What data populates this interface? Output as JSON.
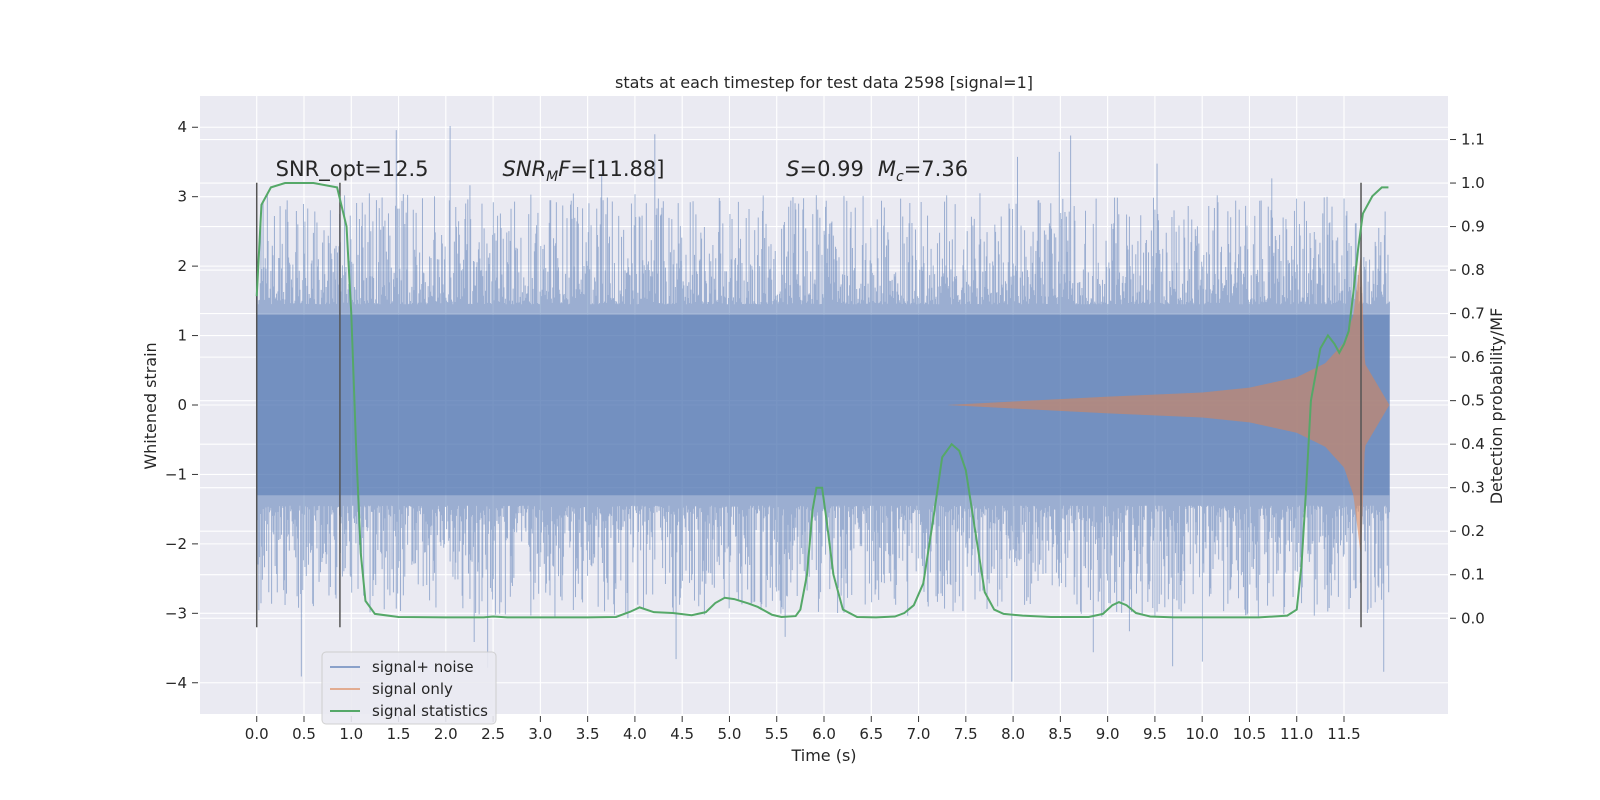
{
  "chart_data": {
    "type": "line",
    "title": "stats at each timestep for test data 2598 [signal=1]",
    "xlabel": "Time (s)",
    "ylabel": "Whitened strain",
    "ylabel_right": "Detection probability/MF",
    "xlim": [
      -0.6,
      12.6
    ],
    "ylim": [
      -4.45,
      4.45
    ],
    "ylim_right": [
      -0.22,
      1.2
    ],
    "x_ticks": [
      "0.0",
      "0.5",
      "1.0",
      "1.5",
      "2.0",
      "2.5",
      "3.0",
      "3.5",
      "4.0",
      "4.5",
      "5.0",
      "5.5",
      "6.0",
      "6.5",
      "7.0",
      "7.5",
      "8.0",
      "8.5",
      "9.0",
      "9.5",
      "10.0",
      "10.5",
      "11.0",
      "11.5"
    ],
    "y_ticks": [
      "4",
      "3",
      "2",
      "1",
      "0",
      "−1",
      "−2",
      "−3",
      "−4"
    ],
    "y_ticks_right": [
      "1.1",
      "1.0",
      "0.9",
      "0.8",
      "0.7",
      "0.6",
      "0.5",
      "0.4",
      "0.3",
      "0.2",
      "0.1",
      "0.0"
    ],
    "grid": true,
    "legend_position": "lower-left",
    "colors": {
      "signal_noise": "#4c72b0",
      "signal_only": "#dd8452",
      "signal_statistics": "#55a868",
      "background": "#eaeaf2",
      "grid": "#ffffff",
      "markers": "#555555"
    },
    "annotations": [
      {
        "text": "SNR_opt=12.5",
        "x": 0.2,
        "y": 3.3
      },
      {
        "text": "SNR_MF=[11.88]",
        "x": 2.6,
        "y": 3.3
      },
      {
        "text": "S=0.99   M_c=7.36",
        "x": 5.6,
        "y": 3.3
      }
    ],
    "vertical_markers": [
      0.0,
      0.88,
      11.68
    ],
    "series": [
      {
        "name": "signal+ noise",
        "kind": "noise-envelope",
        "x_range": [
          0.0,
          11.98
        ],
        "envelope_core": 1.3,
        "typical_max": 2.9,
        "extreme_max": 4.1,
        "extreme_min": -4.0
      },
      {
        "name": "signal only",
        "kind": "chirp-envelope",
        "x_start": 7.3,
        "x_end": 11.98,
        "amplitude_points": [
          [
            7.3,
            0.0
          ],
          [
            8.0,
            0.05
          ],
          [
            9.0,
            0.12
          ],
          [
            10.0,
            0.18
          ],
          [
            10.5,
            0.25
          ],
          [
            11.0,
            0.4
          ],
          [
            11.3,
            0.6
          ],
          [
            11.5,
            0.9
          ],
          [
            11.6,
            1.3
          ],
          [
            11.68,
            2.2
          ],
          [
            11.72,
            0.6
          ],
          [
            11.98,
            0.0
          ]
        ]
      },
      {
        "name": "signal statistics",
        "kind": "line",
        "axis": "right",
        "points": [
          [
            0.0,
            0.74
          ],
          [
            0.05,
            0.95
          ],
          [
            0.15,
            0.99
          ],
          [
            0.3,
            1.0
          ],
          [
            0.6,
            1.0
          ],
          [
            0.85,
            0.99
          ],
          [
            0.95,
            0.9
          ],
          [
            1.0,
            0.7
          ],
          [
            1.05,
            0.4
          ],
          [
            1.1,
            0.15
          ],
          [
            1.15,
            0.04
          ],
          [
            1.25,
            0.01
          ],
          [
            1.5,
            0.003
          ],
          [
            2.0,
            0.002
          ],
          [
            2.4,
            0.002
          ],
          [
            2.5,
            0.004
          ],
          [
            2.65,
            0.002
          ],
          [
            3.0,
            0.002
          ],
          [
            3.5,
            0.002
          ],
          [
            3.8,
            0.003
          ],
          [
            3.95,
            0.015
          ],
          [
            4.05,
            0.025
          ],
          [
            4.2,
            0.014
          ],
          [
            4.4,
            0.012
          ],
          [
            4.6,
            0.007
          ],
          [
            4.75,
            0.014
          ],
          [
            4.85,
            0.035
          ],
          [
            4.95,
            0.047
          ],
          [
            5.05,
            0.044
          ],
          [
            5.2,
            0.034
          ],
          [
            5.3,
            0.026
          ],
          [
            5.45,
            0.008
          ],
          [
            5.55,
            0.003
          ],
          [
            5.7,
            0.005
          ],
          [
            5.75,
            0.02
          ],
          [
            5.82,
            0.1
          ],
          [
            5.88,
            0.25
          ],
          [
            5.92,
            0.3
          ],
          [
            5.98,
            0.3
          ],
          [
            6.03,
            0.22
          ],
          [
            6.1,
            0.1
          ],
          [
            6.2,
            0.02
          ],
          [
            6.35,
            0.003
          ],
          [
            6.55,
            0.002
          ],
          [
            6.75,
            0.004
          ],
          [
            6.85,
            0.012
          ],
          [
            6.95,
            0.03
          ],
          [
            7.05,
            0.08
          ],
          [
            7.15,
            0.22
          ],
          [
            7.25,
            0.37
          ],
          [
            7.35,
            0.4
          ],
          [
            7.43,
            0.385
          ],
          [
            7.5,
            0.34
          ],
          [
            7.6,
            0.2
          ],
          [
            7.7,
            0.06
          ],
          [
            7.8,
            0.02
          ],
          [
            7.9,
            0.01
          ],
          [
            8.1,
            0.006
          ],
          [
            8.4,
            0.003
          ],
          [
            8.8,
            0.003
          ],
          [
            8.95,
            0.01
          ],
          [
            9.05,
            0.03
          ],
          [
            9.12,
            0.037
          ],
          [
            9.2,
            0.03
          ],
          [
            9.3,
            0.012
          ],
          [
            9.45,
            0.004
          ],
          [
            9.7,
            0.002
          ],
          [
            10.2,
            0.002
          ],
          [
            10.6,
            0.002
          ],
          [
            10.9,
            0.006
          ],
          [
            11.0,
            0.02
          ],
          [
            11.05,
            0.12
          ],
          [
            11.1,
            0.3
          ],
          [
            11.15,
            0.5
          ],
          [
            11.25,
            0.62
          ],
          [
            11.33,
            0.65
          ],
          [
            11.4,
            0.63
          ],
          [
            11.45,
            0.61
          ],
          [
            11.5,
            0.63
          ],
          [
            11.55,
            0.66
          ],
          [
            11.6,
            0.75
          ],
          [
            11.65,
            0.85
          ],
          [
            11.7,
            0.93
          ],
          [
            11.8,
            0.97
          ],
          [
            11.9,
            0.99
          ],
          [
            11.97,
            0.99
          ]
        ]
      }
    ]
  }
}
